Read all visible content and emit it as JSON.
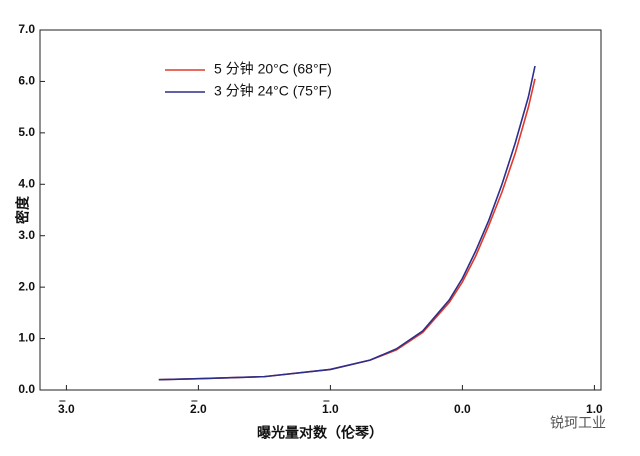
{
  "chart_data": {
    "type": "line",
    "x_label": "曝光量对数（伦琴）",
    "y_label": "密度",
    "annotation": "锐珂工业",
    "x": [
      -2.3,
      -2.0,
      -1.5,
      -1.0,
      -0.7,
      -0.5,
      -0.3,
      -0.1,
      0.0,
      0.1,
      0.2,
      0.3,
      0.4,
      0.5,
      0.55
    ],
    "series": [
      {
        "name": "5 分钟 20°C (68°F)",
        "color": "#e03a2a",
        "values": [
          0.2,
          0.22,
          0.26,
          0.4,
          0.58,
          0.78,
          1.12,
          1.7,
          2.1,
          2.6,
          3.2,
          3.85,
          4.6,
          5.5,
          6.05
        ]
      },
      {
        "name": "3 分钟 24°C (75°F)",
        "color": "#2b2f8c",
        "values": [
          0.2,
          0.22,
          0.26,
          0.4,
          0.58,
          0.8,
          1.15,
          1.75,
          2.17,
          2.7,
          3.3,
          4.0,
          4.8,
          5.7,
          6.3
        ]
      }
    ],
    "xlim": [
      -3.2,
      1.05
    ],
    "xticks": [
      {
        "value": -3,
        "label": "3.0"
      },
      {
        "value": -2,
        "label": "2.0"
      },
      {
        "value": -1,
        "label": "1.0"
      },
      {
        "value": 0,
        "label": "0.0"
      },
      {
        "value": 1,
        "label": "1.0"
      }
    ],
    "ylim": [
      0,
      7
    ],
    "yticks": [
      {
        "value": 0,
        "label": "0.0"
      },
      {
        "value": 1,
        "label": "1.0"
      },
      {
        "value": 2,
        "label": "2.0"
      },
      {
        "value": 3,
        "label": "3.0"
      },
      {
        "value": 4,
        "label": "4.0"
      },
      {
        "value": 5,
        "label": "5.0"
      },
      {
        "value": 6,
        "label": "6.0"
      },
      {
        "value": 7,
        "label": "7.0"
      }
    ],
    "legend": "upper left"
  }
}
